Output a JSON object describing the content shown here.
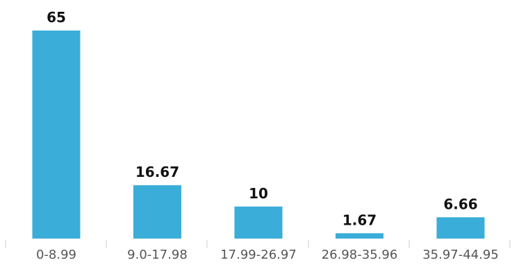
{
  "chart_data": {
    "type": "bar",
    "title": "",
    "xlabel": "",
    "ylabel": "",
    "categories": [
      "0-8.99",
      "9.0-17.98",
      "17.99-26.97",
      "26.98-35.96",
      "35.97-44.95"
    ],
    "values": [
      65,
      16.67,
      10,
      1.67,
      6.66
    ],
    "data_labels": [
      "65",
      "16.67",
      "10",
      "1.67",
      "6.66"
    ],
    "ylim": [
      0,
      65
    ],
    "grid": false,
    "legend": "none",
    "colors": {
      "bar": "#3aadd9",
      "label": "#111111",
      "tick_label": "#555555",
      "tick_mark": "#cfcfcf"
    }
  }
}
